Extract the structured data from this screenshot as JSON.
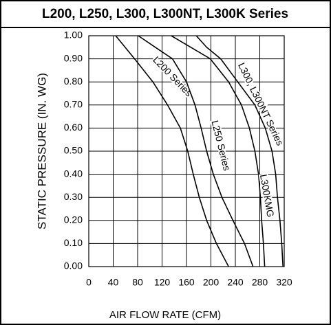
{
  "chart_data": {
    "type": "line",
    "title": "L200, L250, L300, L300NT, L300K Series",
    "xlabel": "AIR FLOW RATE (CFM)",
    "ylabel": "STATIC PRESSURE (IN. WG)",
    "xlim": [
      0,
      320
    ],
    "xticks": [
      0,
      40,
      80,
      120,
      160,
      200,
      240,
      280,
      320
    ],
    "ylim": [
      0,
      1
    ],
    "yticks": [
      {
        "value": 0,
        "label": "0.00"
      },
      {
        "value": 0.1,
        "label": "0.10"
      },
      {
        "value": 0.2,
        "label": "0.20"
      },
      {
        "value": 0.3,
        "label": "0.30"
      },
      {
        "value": 0.4,
        "label": "0.40"
      },
      {
        "value": 0.5,
        "label": "0.50"
      },
      {
        "value": 0.6,
        "label": "0.60"
      },
      {
        "value": 0.7,
        "label": "0.70"
      },
      {
        "value": 0.8,
        "label": "0.80"
      },
      {
        "value": 0.9,
        "label": "0.90"
      },
      {
        "value": 1,
        "label": "1.00"
      }
    ],
    "grid": true,
    "series": [
      {
        "name": "L200 Series",
        "color": "#000000",
        "x": [
          44,
          75,
          105,
          129,
          150,
          162,
          171,
          181,
          193,
          209,
          229
        ],
        "values": [
          1,
          0.9,
          0.8,
          0.7,
          0.6,
          0.5,
          0.4,
          0.3,
          0.2,
          0.1,
          0
        ]
      },
      {
        "name": "L250 Series",
        "color": "#000000",
        "x": [
          81,
          109,
          137,
          160,
          174,
          184,
          193,
          204,
          218,
          236,
          255,
          269
        ],
        "values": [
          1,
          0.95,
          0.9,
          0.8,
          0.7,
          0.6,
          0.5,
          0.4,
          0.3,
          0.2,
          0.1,
          0
        ]
      },
      {
        "name": "L300, L300NT Series",
        "color": "#000000",
        "x": [
          176,
          193,
          216,
          244,
          272,
          289,
          300,
          306,
          309,
          313,
          316,
          318
        ],
        "values": [
          1,
          0.95,
          0.9,
          0.8,
          0.7,
          0.6,
          0.5,
          0.4,
          0.3,
          0.2,
          0.1,
          0
        ]
      },
      {
        "name": "L300KMG",
        "color": "#000000",
        "x": [
          135,
          199,
          229,
          250,
          263,
          272,
          278,
          281,
          283,
          286,
          288
        ],
        "values": [
          1,
          0.9,
          0.8,
          0.7,
          0.6,
          0.5,
          0.4,
          0.3,
          0.2,
          0.1,
          0
        ]
      }
    ]
  }
}
